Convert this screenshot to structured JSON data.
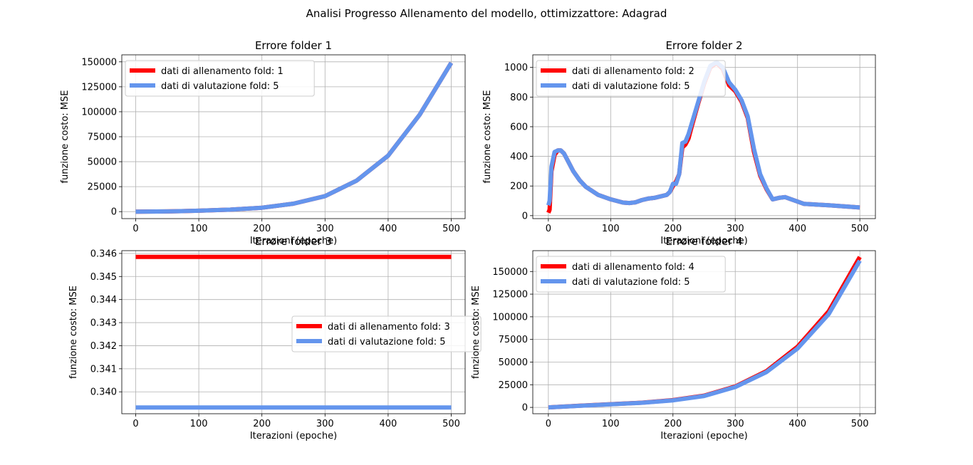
{
  "figure": {
    "suptitle": "Analisi Progresso Allenamento del modello, ottimizzattore: Adagrad"
  },
  "colors": {
    "train": "#ff0000",
    "valid": "#6495ed",
    "grid": "#b0b0b0",
    "axis": "#000000"
  },
  "chart_data": [
    {
      "type": "line",
      "title": "Errore folder 1",
      "xlabel": "Iterazioni (epoche)",
      "ylabel": "funzione costo: MSE",
      "xlim": [
        -22,
        522
      ],
      "ylim": [
        -7000,
        157000
      ],
      "xticks": [
        0,
        100,
        200,
        300,
        400,
        500
      ],
      "yticks": [
        0,
        25000,
        50000,
        75000,
        100000,
        125000,
        150000
      ],
      "legend": "top-left",
      "grid": true,
      "series": [
        {
          "name": "dati di allenamento fold: 1",
          "color": "train",
          "x": [
            0,
            50,
            100,
            150,
            200,
            250,
            300,
            350,
            400,
            450,
            500
          ],
          "y": [
            0,
            200,
            900,
            2000,
            3900,
            8000,
            15500,
            31000,
            56000,
            97000,
            149000
          ]
        },
        {
          "name": "dati di valutazione fold: 5",
          "color": "valid",
          "x": [
            0,
            50,
            100,
            150,
            200,
            250,
            300,
            350,
            400,
            450,
            500
          ],
          "y": [
            0,
            200,
            900,
            2000,
            3900,
            8000,
            15500,
            31000,
            56000,
            97000,
            149000
          ]
        }
      ]
    },
    {
      "type": "line",
      "title": "Errore folder 2",
      "xlabel": "Iterazioni (epoche)",
      "ylabel": "funzione costo: MSE",
      "xlim": [
        -25,
        525
      ],
      "ylim": [
        -20,
        1085
      ],
      "xticks": [
        0,
        100,
        200,
        300,
        400,
        500
      ],
      "yticks": [
        0,
        200,
        400,
        600,
        800,
        1000
      ],
      "legend": "top-left",
      "grid": true,
      "series": [
        {
          "name": "dati di allenamento fold: 2",
          "color": "train",
          "x": [
            0,
            2,
            5,
            10,
            15,
            20,
            25,
            30,
            40,
            50,
            60,
            80,
            100,
            120,
            130,
            140,
            150,
            160,
            170,
            180,
            190,
            195,
            200,
            205,
            210,
            215,
            220,
            225,
            230,
            240,
            250,
            260,
            270,
            280,
            290,
            300,
            310,
            320,
            330,
            340,
            350,
            360,
            370,
            380,
            390,
            400,
            410,
            450,
            500
          ],
          "y": [
            20,
            40,
            300,
            410,
            440,
            440,
            420,
            380,
            300,
            240,
            195,
            140,
            110,
            88,
            85,
            90,
            105,
            115,
            120,
            130,
            140,
            160,
            200,
            230,
            280,
            460,
            480,
            520,
            600,
            750,
            890,
            1000,
            1030,
            990,
            880,
            840,
            770,
            660,
            430,
            270,
            180,
            110,
            120,
            125,
            110,
            95,
            80,
            70,
            55
          ]
        },
        {
          "name": "dati di valutazione fold: 5",
          "color": "valid",
          "x": [
            0,
            2,
            5,
            10,
            15,
            20,
            25,
            30,
            40,
            50,
            60,
            80,
            100,
            120,
            130,
            140,
            150,
            160,
            170,
            180,
            190,
            195,
            200,
            205,
            210,
            215,
            220,
            225,
            230,
            240,
            250,
            260,
            270,
            280,
            290,
            300,
            310,
            320,
            330,
            340,
            350,
            360,
            370,
            380,
            390,
            400,
            410,
            450,
            500
          ],
          "y": [
            70,
            100,
            330,
            430,
            440,
            440,
            420,
            380,
            300,
            240,
            195,
            140,
            110,
            88,
            85,
            90,
            105,
            115,
            120,
            130,
            140,
            160,
            215,
            215,
            280,
            490,
            500,
            550,
            620,
            760,
            900,
            1010,
            1035,
            1000,
            900,
            850,
            780,
            670,
            450,
            280,
            185,
            110,
            120,
            125,
            110,
            95,
            80,
            70,
            55
          ]
        }
      ]
    },
    {
      "type": "line",
      "title": "Errore folder 3",
      "xlabel": "Iterazioni (epoche)",
      "ylabel": "funzione costo: MSE",
      "xlim": [
        -22,
        522
      ],
      "ylim": [
        0.33905,
        0.34612
      ],
      "xticks": [
        0,
        100,
        200,
        300,
        400,
        500
      ],
      "yticks": [
        0.34,
        0.341,
        0.342,
        0.343,
        0.344,
        0.345,
        0.346
      ],
      "yticklabels": [
        "0.340",
        "0.341",
        "0.342",
        "0.343",
        "0.344",
        "0.345",
        "0.346"
      ],
      "legend": "center-right",
      "grid": true,
      "series": [
        {
          "name": "dati di allenamento fold: 3",
          "color": "train",
          "x": [
            0,
            500
          ],
          "y": [
            0.34585,
            0.34585
          ]
        },
        {
          "name": "dati di valutazione fold: 5",
          "color": "valid",
          "x": [
            0,
            500
          ],
          "y": [
            0.33932,
            0.33932
          ]
        }
      ]
    },
    {
      "type": "line",
      "title": "Errore folder 4",
      "xlabel": "Iterazioni (epoche)",
      "ylabel": "funzione costo: MSE",
      "xlim": [
        -25,
        525
      ],
      "ylim": [
        -7000,
        173000
      ],
      "xticks": [
        0,
        100,
        200,
        300,
        400,
        500
      ],
      "yticks": [
        0,
        25000,
        50000,
        75000,
        100000,
        125000,
        150000
      ],
      "legend": "top-left",
      "grid": true,
      "series": [
        {
          "name": "dati di allenamento fold: 4",
          "color": "train",
          "x": [
            0,
            50,
            100,
            150,
            200,
            250,
            300,
            350,
            400,
            450,
            500
          ],
          "y": [
            0,
            1800,
            3500,
            5200,
            8000,
            13000,
            23000,
            40000,
            67000,
            106000,
            166000
          ]
        },
        {
          "name": "dati di valutazione fold: 5",
          "color": "valid",
          "x": [
            0,
            50,
            100,
            150,
            200,
            250,
            300,
            350,
            400,
            450,
            500
          ],
          "y": [
            0,
            1700,
            3400,
            5100,
            7800,
            12600,
            22500,
            39000,
            65000,
            103000,
            162000
          ]
        }
      ]
    }
  ]
}
